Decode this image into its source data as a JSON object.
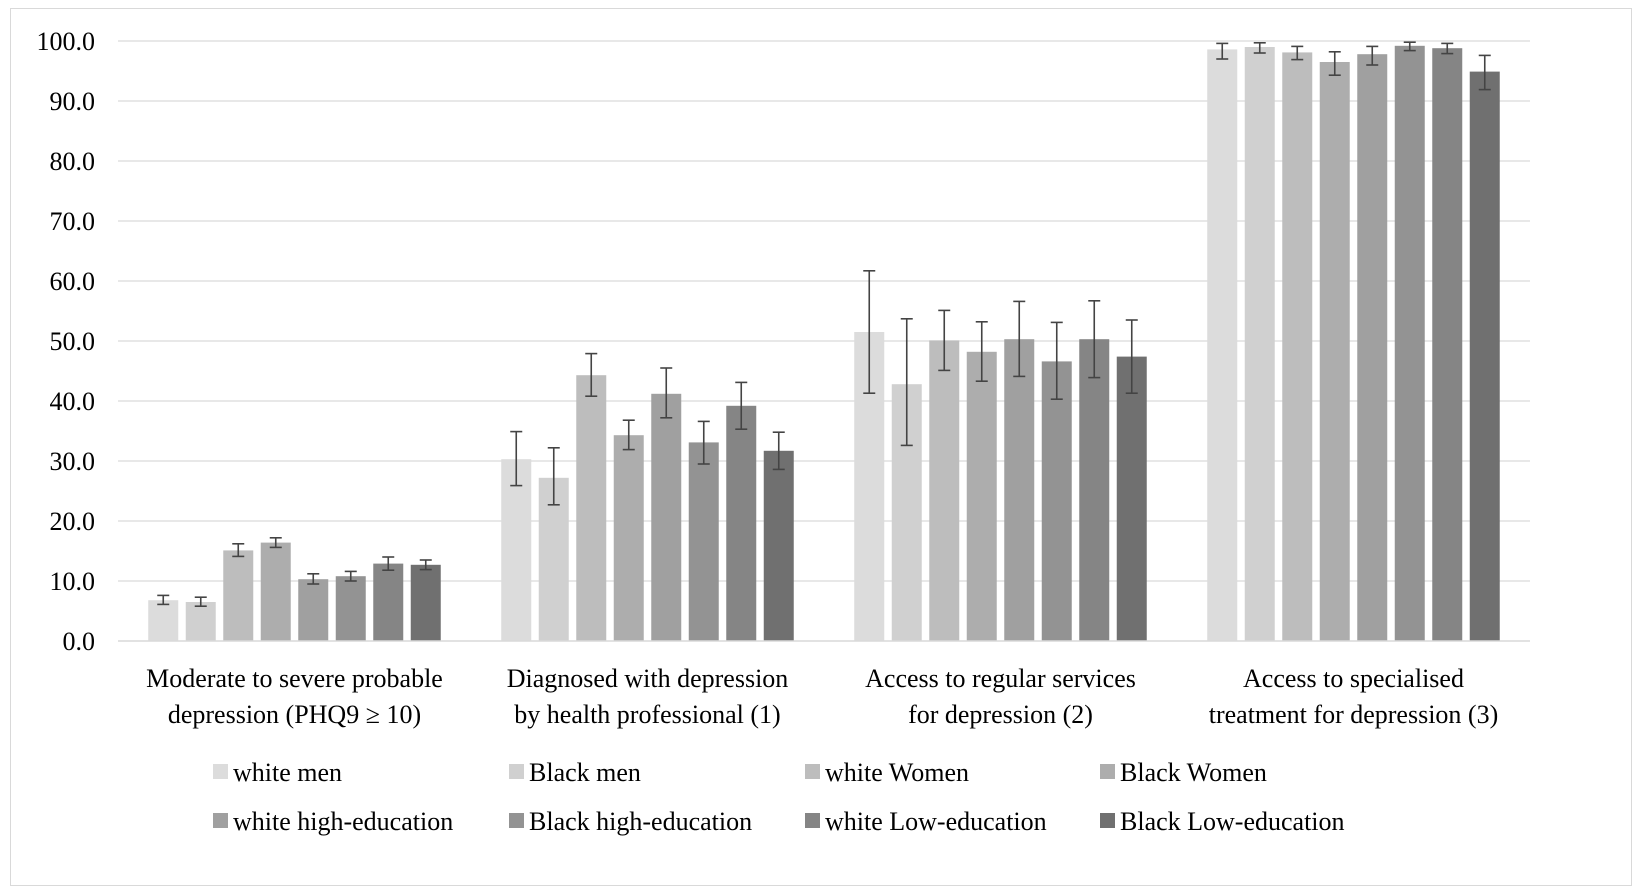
{
  "chart_data": {
    "type": "bar",
    "title": "",
    "xlabel": "",
    "ylabel": "",
    "ylim": [
      0,
      100
    ],
    "yticks": [
      "0.0",
      "10.0",
      "20.0",
      "30.0",
      "40.0",
      "50.0",
      "60.0",
      "70.0",
      "80.0",
      "90.0",
      "100.0"
    ],
    "grid": true,
    "legend_position": "bottom",
    "categories": [
      [
        "Moderate to severe probable",
        "depression (PHQ9 ≥ 10)"
      ],
      [
        "Diagnosed with depression",
        "by health professional (1)"
      ],
      [
        "Access to regular services",
        "for depression  (2)"
      ],
      [
        "Access to specialised",
        "treatment for depression  (3)"
      ]
    ],
    "series": [
      {
        "name": "white men",
        "color": "#dcdcdc",
        "values": [
          6.8,
          30.3,
          51.5,
          98.6
        ],
        "error_low": [
          6.1,
          25.9,
          41.3,
          97.0
        ],
        "error_high": [
          7.6,
          34.9,
          61.7,
          99.6
        ]
      },
      {
        "name": "Black men",
        "color": "#d0d0d0",
        "values": [
          6.5,
          27.2,
          42.8,
          99.0
        ],
        "error_low": [
          5.8,
          22.7,
          32.6,
          98.0
        ],
        "error_high": [
          7.3,
          32.2,
          53.7,
          99.7
        ]
      },
      {
        "name": "white Women",
        "color": "#bdbdbd",
        "values": [
          15.1,
          44.3,
          50.1,
          98.1
        ],
        "error_low": [
          14.1,
          40.8,
          45.1,
          96.9
        ],
        "error_high": [
          16.2,
          47.9,
          55.1,
          99.1
        ]
      },
      {
        "name": "Black Women",
        "color": "#adadad",
        "values": [
          16.4,
          34.3,
          48.2,
          96.5
        ],
        "error_low": [
          15.6,
          31.9,
          43.3,
          94.3
        ],
        "error_high": [
          17.2,
          36.8,
          53.2,
          98.2
        ]
      },
      {
        "name": "white high-education",
        "color": "#a0a0a0",
        "values": [
          10.3,
          41.2,
          50.3,
          97.8
        ],
        "error_low": [
          9.5,
          37.2,
          44.1,
          96.0
        ],
        "error_high": [
          11.2,
          45.5,
          56.6,
          99.1
        ]
      },
      {
        "name": "Black high-education",
        "color": "#939393",
        "values": [
          10.8,
          33.1,
          46.6,
          99.2
        ],
        "error_low": [
          10.0,
          29.5,
          40.3,
          98.4
        ],
        "error_high": [
          11.6,
          36.6,
          53.1,
          99.8
        ]
      },
      {
        "name": "white Low-education",
        "color": "#858585",
        "values": [
          12.9,
          39.2,
          50.3,
          98.8
        ],
        "error_low": [
          11.8,
          35.3,
          43.9,
          97.9
        ],
        "error_high": [
          14.0,
          43.1,
          56.7,
          99.6
        ]
      },
      {
        "name": "Black Low-education",
        "color": "#707070",
        "values": [
          12.7,
          31.7,
          47.4,
          94.9
        ],
        "error_low": [
          11.9,
          28.6,
          41.3,
          91.9
        ],
        "error_high": [
          13.5,
          34.8,
          53.5,
          97.6
        ]
      }
    ]
  }
}
